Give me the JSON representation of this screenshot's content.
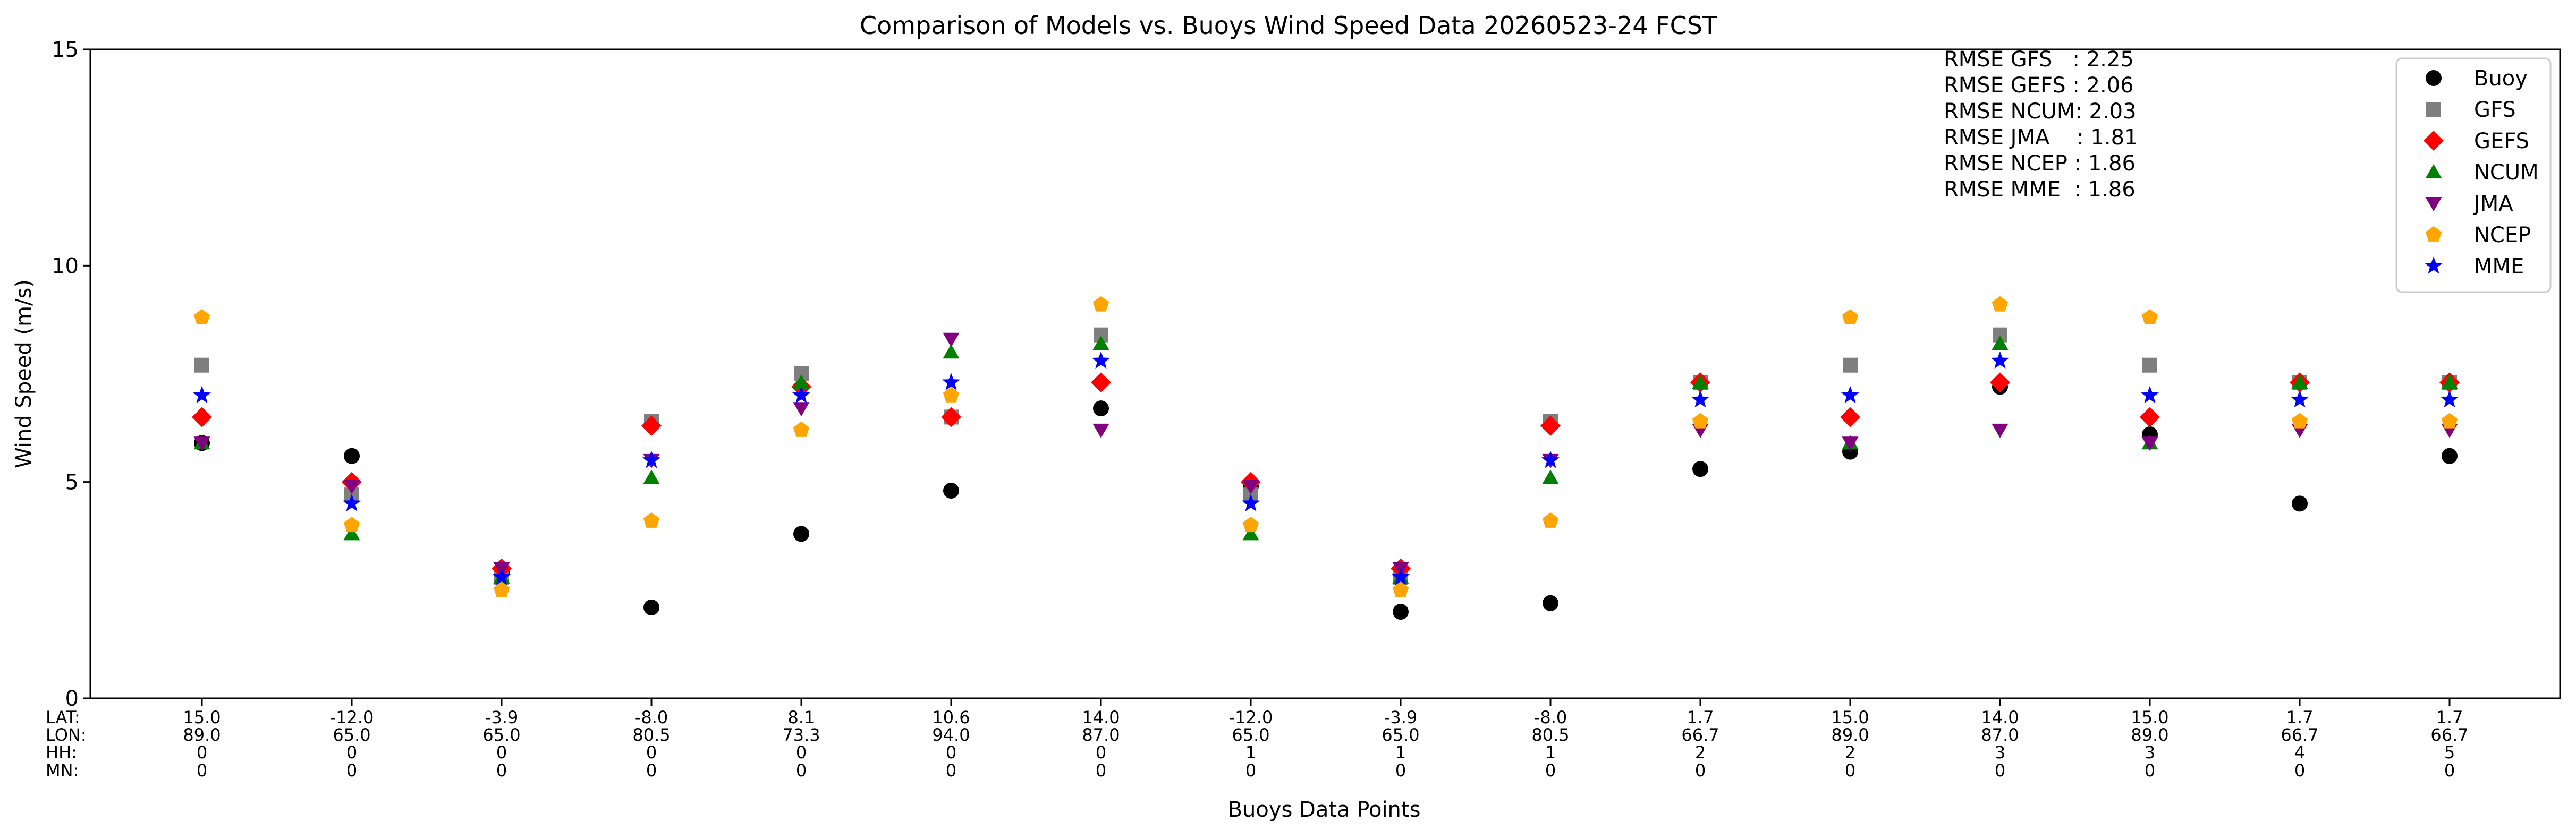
{
  "chart_data": {
    "type": "scatter",
    "title": "Comparison of Models vs. Buoys Wind Speed Data 20260523-24 FCST",
    "xlabel": "Buoys Data Points",
    "ylabel": "Wind Speed (m/s)",
    "ylim": [
      0,
      15
    ],
    "yticks": [
      0,
      5,
      10,
      15
    ],
    "grid": false,
    "legend_position": "top-right",
    "row_labels": [
      "LAT:",
      "LON:",
      "HH:",
      "MN:"
    ],
    "points": [
      {
        "lat": "15.0",
        "lon": "89.0",
        "hh": "0",
        "mn": "0"
      },
      {
        "lat": "-12.0",
        "lon": "65.0",
        "hh": "0",
        "mn": "0"
      },
      {
        "lat": "-3.9",
        "lon": "65.0",
        "hh": "0",
        "mn": "0"
      },
      {
        "lat": "-8.0",
        "lon": "80.5",
        "hh": "0",
        "mn": "0"
      },
      {
        "lat": "8.1",
        "lon": "73.3",
        "hh": "0",
        "mn": "0"
      },
      {
        "lat": "10.6",
        "lon": "94.0",
        "hh": "0",
        "mn": "0"
      },
      {
        "lat": "14.0",
        "lon": "87.0",
        "hh": "0",
        "mn": "0"
      },
      {
        "lat": "-12.0",
        "lon": "65.0",
        "hh": "1",
        "mn": "0"
      },
      {
        "lat": "-3.9",
        "lon": "65.0",
        "hh": "1",
        "mn": "0"
      },
      {
        "lat": "-8.0",
        "lon": "80.5",
        "hh": "1",
        "mn": "0"
      },
      {
        "lat": "1.7",
        "lon": "66.7",
        "hh": "2",
        "mn": "0"
      },
      {
        "lat": "15.0",
        "lon": "89.0",
        "hh": "2",
        "mn": "0"
      },
      {
        "lat": "14.0",
        "lon": "87.0",
        "hh": "3",
        "mn": "0"
      },
      {
        "lat": "15.0",
        "lon": "89.0",
        "hh": "3",
        "mn": "0"
      },
      {
        "lat": "1.7",
        "lon": "66.7",
        "hh": "4",
        "mn": "0"
      },
      {
        "lat": "1.7",
        "lon": "66.7",
        "hh": "5",
        "mn": "0"
      }
    ],
    "series": [
      {
        "name": "Buoy",
        "marker": "circle",
        "color": "#000000",
        "values": [
          5.9,
          5.6,
          2.9,
          2.1,
          3.8,
          4.8,
          6.7,
          4.9,
          2.0,
          2.2,
          5.3,
          5.7,
          7.2,
          6.1,
          4.5,
          5.6
        ]
      },
      {
        "name": "GFS",
        "marker": "square",
        "color": "#7f7f7f",
        "values": [
          7.7,
          4.7,
          2.8,
          6.4,
          7.5,
          6.5,
          8.4,
          4.7,
          2.8,
          6.4,
          7.3,
          7.7,
          8.4,
          7.7,
          7.3,
          7.3
        ]
      },
      {
        "name": "GEFS",
        "marker": "diamond",
        "color": "#ff0000",
        "values": [
          6.5,
          5.0,
          3.0,
          6.3,
          7.2,
          6.5,
          7.3,
          5.0,
          3.0,
          6.3,
          7.3,
          6.5,
          7.3,
          6.5,
          7.3,
          7.3
        ]
      },
      {
        "name": "NCUM",
        "marker": "triangle-up",
        "color": "#008000",
        "values": [
          5.9,
          3.8,
          2.8,
          5.1,
          7.3,
          8.0,
          8.2,
          3.8,
          2.8,
          5.1,
          7.3,
          5.9,
          8.2,
          5.9,
          7.3,
          7.3
        ]
      },
      {
        "name": "JMA",
        "marker": "triangle-down",
        "color": "#800080",
        "values": [
          5.9,
          4.9,
          3.0,
          5.5,
          6.7,
          8.3,
          6.2,
          4.9,
          3.0,
          5.5,
          6.2,
          5.9,
          6.2,
          5.9,
          6.2,
          6.2
        ]
      },
      {
        "name": "NCEP",
        "marker": "pentagon",
        "color": "#ffa500",
        "values": [
          8.8,
          4.0,
          2.5,
          4.1,
          6.2,
          7.0,
          9.1,
          4.0,
          2.5,
          4.1,
          6.4,
          8.8,
          9.1,
          8.8,
          6.4,
          6.4
        ]
      },
      {
        "name": "MME",
        "marker": "star",
        "color": "#0000ff",
        "values": [
          7.0,
          4.5,
          2.8,
          5.5,
          7.0,
          7.3,
          7.8,
          4.5,
          2.8,
          5.5,
          6.9,
          7.0,
          7.8,
          7.0,
          6.9,
          6.9
        ]
      }
    ],
    "annotations": [
      "RMSE GFS   : 2.25",
      "RMSE GEFS : 2.06",
      "RMSE NCUM: 2.03",
      "RMSE JMA    : 1.81",
      "RMSE NCEP : 1.86",
      "RMSE MME  : 1.86"
    ]
  }
}
